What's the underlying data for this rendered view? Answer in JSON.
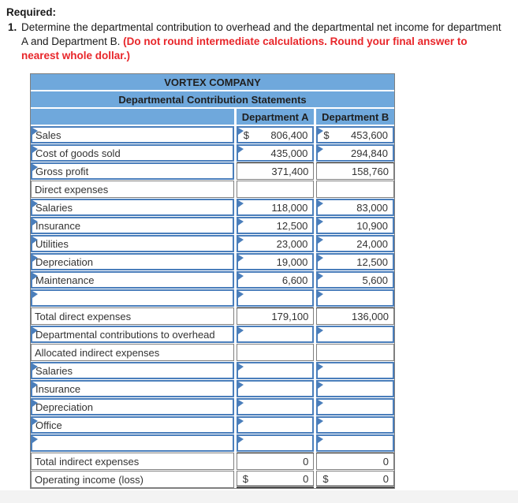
{
  "instructions": {
    "required_label": "Required:",
    "item_number": "1.",
    "text_black": "Determine the departmental contribution to overhead and the departmental net income for department A and Department B. ",
    "text_red": "(Do not round intermediate calculations. Round your final answer to nearest whole dollar.)"
  },
  "colors": {
    "header_blue": "#6fa8dc",
    "editable_border_blue": "#4a7ebb",
    "emphasis_red": "#e8262a",
    "grid_gray": "#7f7f7f"
  },
  "table": {
    "title": "VORTEX COMPANY",
    "subtitle": "Departmental Contribution Statements",
    "columns": [
      "Department A",
      "Department B"
    ],
    "rows": [
      {
        "label": "Sales",
        "label_editable": true,
        "cells": "input",
        "a_prefix": "$",
        "a": "806,400",
        "b_prefix": "$",
        "b": "453,600"
      },
      {
        "label": "Cost of goods sold",
        "label_editable": true,
        "cells": "input",
        "a": "435,000",
        "b": "294,840"
      },
      {
        "label": "Gross profit",
        "label_editable": true,
        "cells": "calc",
        "top_rule": true,
        "a": "371,400",
        "b": "158,760"
      },
      {
        "label": "Direct expenses",
        "label_editable": false,
        "cells": "static"
      },
      {
        "label": "Salaries",
        "label_editable": true,
        "cells": "input",
        "a": "118,000",
        "b": "83,000"
      },
      {
        "label": "Insurance",
        "label_editable": true,
        "cells": "input",
        "a": "12,500",
        "b": "10,900"
      },
      {
        "label": "Utilities",
        "label_editable": true,
        "cells": "input",
        "a": "23,000",
        "b": "24,000"
      },
      {
        "label": "Depreciation",
        "label_editable": true,
        "cells": "input",
        "a": "19,000",
        "b": "12,500"
      },
      {
        "label": "Maintenance",
        "label_editable": true,
        "cells": "input",
        "a": "6,600",
        "b": "5,600"
      },
      {
        "label": "",
        "label_editable": true,
        "cells": "input"
      },
      {
        "label": "Total direct expenses",
        "label_editable": false,
        "cells": "calc",
        "top_rule": true,
        "a": "179,100",
        "b": "136,000"
      },
      {
        "label": "Departmental contributions to overhead",
        "label_editable": true,
        "cells": "input"
      },
      {
        "label": "Allocated indirect expenses",
        "label_editable": false,
        "cells": "static"
      },
      {
        "label": "Salaries",
        "label_editable": true,
        "cells": "input"
      },
      {
        "label": "Insurance",
        "label_editable": true,
        "cells": "input"
      },
      {
        "label": "Depreciation",
        "label_editable": true,
        "cells": "input"
      },
      {
        "label": "Office",
        "label_editable": true,
        "cells": "input"
      },
      {
        "label": "",
        "label_editable": true,
        "cells": "input"
      },
      {
        "label": "Total indirect expenses",
        "label_editable": false,
        "cells": "calc",
        "top_rule": true,
        "a": "0",
        "b": "0"
      },
      {
        "label": "Operating income (loss)",
        "label_editable": false,
        "cells": "calc",
        "double_underline": true,
        "a_prefix": "$",
        "a": "0",
        "b_prefix": "$",
        "b": "0"
      }
    ]
  }
}
